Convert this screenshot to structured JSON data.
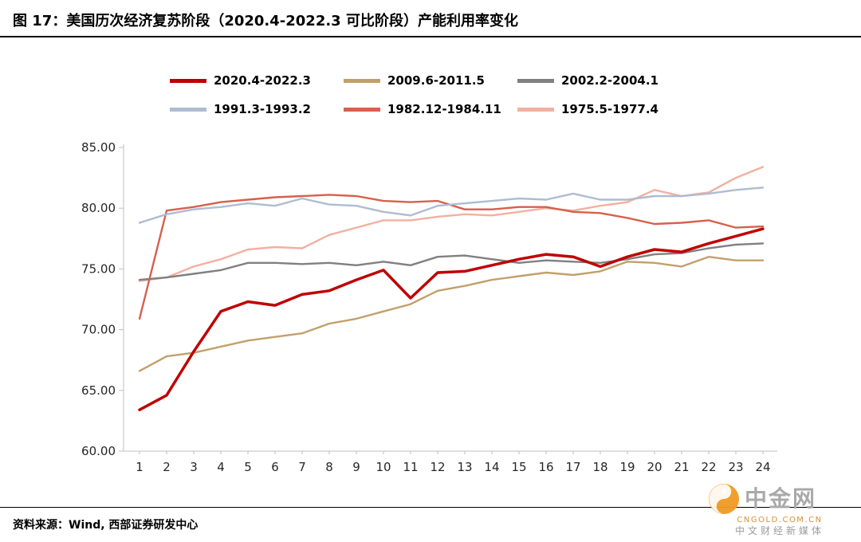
{
  "header": {
    "title": "图 17：美国历次经济复苏阶段（2020.4-2022.3 可比阶段）产能利用率变化"
  },
  "footer": {
    "source": "资料来源：Wind, 西部证券研发中心"
  },
  "watermark": {
    "brand": "中金网",
    "domain": "CNGOLD.COM.CN",
    "tagline": "中文财经新媒体",
    "logo_color": "#f09a23"
  },
  "chart_data": {
    "type": "line",
    "title": "美国历次经济复苏阶段（2020.4-2022.3 可比阶段）产能利用率变化",
    "xlabel": "",
    "ylabel": "",
    "x": [
      1,
      2,
      3,
      4,
      5,
      6,
      7,
      8,
      9,
      10,
      11,
      12,
      13,
      14,
      15,
      16,
      17,
      18,
      19,
      20,
      21,
      22,
      23,
      24
    ],
    "ylim": [
      60,
      85
    ],
    "yticks": [
      60,
      65,
      70,
      75,
      80,
      85
    ],
    "ytick_labels": [
      "60.00",
      "65.00",
      "70.00",
      "75.00",
      "80.00",
      "85.00"
    ],
    "grid": false,
    "legend_position": "top",
    "axis_color": "#bfbfbf",
    "tick_label_color": "#262626",
    "series": [
      {
        "name": "2020.4-2022.3",
        "color": "#c00000",
        "line_width": 3.5,
        "values": [
          63.4,
          64.6,
          68.2,
          71.5,
          72.3,
          72.0,
          72.9,
          73.2,
          74.1,
          74.9,
          72.6,
          74.7,
          74.8,
          75.3,
          75.8,
          76.2,
          76.0,
          75.2,
          76.0,
          76.6,
          76.4,
          77.1,
          77.7,
          78.3
        ]
      },
      {
        "name": "2009.6-2011.5",
        "color": "#c2a06b",
        "line_width": 2.4,
        "values": [
          66.6,
          67.8,
          68.1,
          68.6,
          69.1,
          69.4,
          69.7,
          70.5,
          70.9,
          71.5,
          72.1,
          73.2,
          73.6,
          74.1,
          74.4,
          74.7,
          74.5,
          74.8,
          75.6,
          75.5,
          75.2,
          76.0,
          75.7,
          75.7
        ]
      },
      {
        "name": "2002.2-2004.1",
        "color": "#808080",
        "line_width": 2.4,
        "values": [
          74.1,
          74.3,
          74.6,
          74.9,
          75.5,
          75.5,
          75.4,
          75.5,
          75.3,
          75.6,
          75.3,
          76.0,
          76.1,
          75.8,
          75.5,
          75.7,
          75.6,
          75.5,
          75.8,
          76.2,
          76.3,
          76.7,
          77.0,
          77.1
        ]
      },
      {
        "name": "1991.3-1993.2",
        "color": "#aebcd2",
        "line_width": 2.4,
        "values": [
          78.8,
          79.5,
          79.9,
          80.1,
          80.4,
          80.2,
          80.8,
          80.3,
          80.2,
          79.7,
          79.4,
          80.2,
          80.4,
          80.6,
          80.8,
          80.7,
          81.2,
          80.7,
          80.7,
          81.0,
          81.0,
          81.2,
          81.5,
          81.7
        ]
      },
      {
        "name": "1982.12-1984.11",
        "color": "#d6604d",
        "line_width": 2.4,
        "values": [
          70.9,
          79.8,
          80.1,
          80.5,
          80.7,
          80.9,
          81.0,
          81.1,
          81.0,
          80.6,
          80.5,
          80.6,
          79.9,
          79.9,
          80.1,
          80.1,
          79.7,
          79.6,
          79.2,
          78.7,
          78.8,
          79.0,
          78.4,
          78.5
        ]
      },
      {
        "name": "1975.5-1977.4",
        "color": "#f3b0a0",
        "line_width": 2.4,
        "values": [
          74.0,
          74.3,
          75.2,
          75.8,
          76.6,
          76.8,
          76.7,
          77.8,
          78.4,
          79.0,
          79.0,
          79.3,
          79.5,
          79.4,
          79.7,
          80.0,
          79.8,
          80.2,
          80.5,
          81.5,
          81.0,
          81.3,
          82.5,
          83.4
        ]
      }
    ]
  }
}
